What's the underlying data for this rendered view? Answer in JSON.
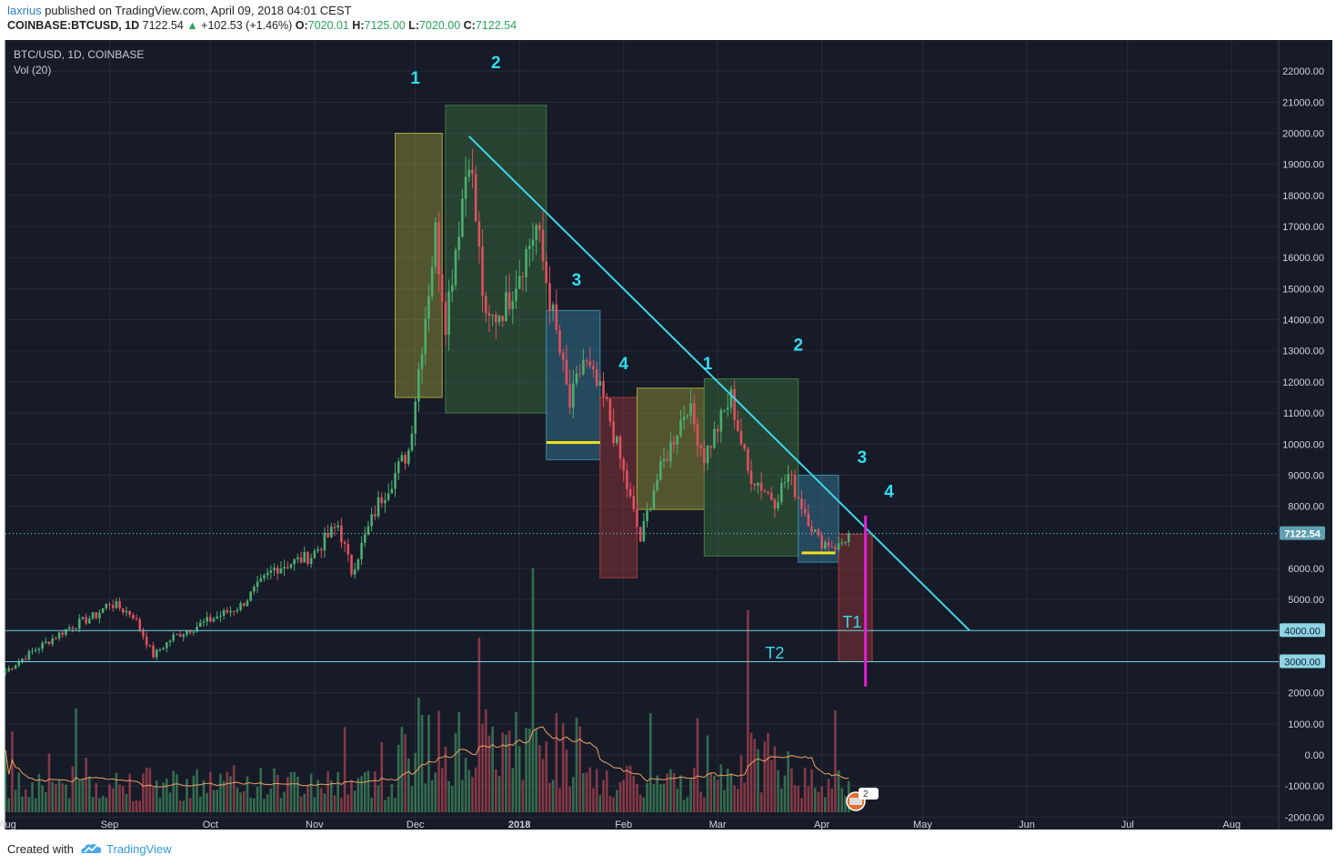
{
  "header": {
    "publisher": "laxrius",
    "published_text": "published on TradingView.com, April 09, 2018 04:01 CEST",
    "symbol": "COINBASE:BTCUSD, 1D",
    "last": "7122.54",
    "change": "+102.53 (+1.46%)",
    "open_label": "O:",
    "open": "7020.01",
    "high_label": "H:",
    "high": "7125.00",
    "low_label": "L:",
    "low": "7020.00",
    "close_label": "C:",
    "close": "7122.54"
  },
  "legend": {
    "series": "BTC/USD, 1D, COINBASE",
    "indicator": "Vol (20)"
  },
  "footer": {
    "created_with": "Created with",
    "brand": "TradingView"
  },
  "colors": {
    "background": "#171b28",
    "grid": "#262b3b",
    "up": "#4cae70",
    "down": "#e0505f",
    "annotation": "#33dcf0",
    "trendline": "#3fd8e8",
    "level_line": "#6fd5e6",
    "yellow_box": "#a8a83a",
    "green_box": "#3d7a3d",
    "teal_box": "#3a8aa8",
    "red_box": "#a83a3a",
    "support_line": "#f0e020",
    "target_bar": "#e020d0",
    "volume_ma": "#f0a060"
  },
  "chart_data": {
    "type": "candlestick",
    "title": "BTC/USD, 1D, COINBASE",
    "indicator": "Vol (20)",
    "x_ticks": [
      "Aug",
      "Sep",
      "Oct",
      "Nov",
      "Dec",
      "2018",
      "Feb",
      "Mar",
      "Apr",
      "May",
      "Jun",
      "Jul",
      "Aug"
    ],
    "y_ticks": [
      "22000.00",
      "21000.00",
      "20000.00",
      "19000.00",
      "18000.00",
      "17000.00",
      "16000.00",
      "15000.00",
      "14000.00",
      "13000.00",
      "12000.00",
      "11000.00",
      "10000.00",
      "9000.00",
      "8000.00",
      "6000.00",
      "5000.00",
      "2000.00",
      "1000.00",
      "0.00",
      "-1000.00",
      "-2000.00"
    ],
    "price_scale_labels": [
      "7122.54",
      "4000.00",
      "3000.00"
    ],
    "x_range": [
      "2017-08-01",
      "2018-08-15"
    ],
    "y_range": [
      -2400,
      23000
    ],
    "last_price": 7122.54,
    "close_series": {
      "start_date": "2017-08-01",
      "interval": "1D",
      "anchors": [
        [
          "2017-08-01",
          2700
        ],
        [
          "2017-08-10",
          3400
        ],
        [
          "2017-08-20",
          4100
        ],
        [
          "2017-08-28",
          4500
        ],
        [
          "2017-09-01",
          4900
        ],
        [
          "2017-09-08",
          4500
        ],
        [
          "2017-09-14",
          3200
        ],
        [
          "2017-09-20",
          3800
        ],
        [
          "2017-09-30",
          4300
        ],
        [
          "2017-10-10",
          4800
        ],
        [
          "2017-10-20",
          6000
        ],
        [
          "2017-10-31",
          6400
        ],
        [
          "2017-11-08",
          7400
        ],
        [
          "2017-11-12",
          5900
        ],
        [
          "2017-11-20",
          8100
        ],
        [
          "2017-11-29",
          9800
        ],
        [
          "2017-12-07",
          16800
        ],
        [
          "2017-12-10",
          14000
        ],
        [
          "2017-12-17",
          19500
        ],
        [
          "2017-12-22",
          13800
        ],
        [
          "2017-12-28",
          14500
        ],
        [
          "2018-01-06",
          17000
        ],
        [
          "2018-01-16",
          11200
        ],
        [
          "2018-01-20",
          12700
        ],
        [
          "2018-01-27",
          11200
        ],
        [
          "2018-02-06",
          6900
        ],
        [
          "2018-02-10",
          8600
        ],
        [
          "2018-02-20",
          11300
        ],
        [
          "2018-02-25",
          9600
        ],
        [
          "2018-03-05",
          11500
        ],
        [
          "2018-03-10",
          9100
        ],
        [
          "2018-03-18",
          8200
        ],
        [
          "2018-03-22",
          9000
        ],
        [
          "2018-03-31",
          6900
        ],
        [
          "2018-04-06",
          6700
        ],
        [
          "2018-04-09",
          7122.54
        ]
      ]
    },
    "trendline": {
      "from": [
        "2017-12-17",
        19900
      ],
      "to": [
        "2018-05-15",
        4000
      ]
    },
    "horizontal_levels": [
      {
        "label": "T1",
        "value": 4000
      },
      {
        "label": "T2",
        "value": 3000
      }
    ],
    "wave_annotations": [
      {
        "label": "1",
        "date": "2017-12-01",
        "price": 21600
      },
      {
        "label": "2",
        "date": "2017-12-25",
        "price": 22100
      },
      {
        "label": "3",
        "date": "2018-01-18",
        "price": 15100
      },
      {
        "label": "4",
        "date": "2018-02-01",
        "price": 12400
      },
      {
        "label": "1",
        "date": "2018-02-26",
        "price": 12400
      },
      {
        "label": "2",
        "date": "2018-03-25",
        "price": 13000
      },
      {
        "label": "3",
        "date": "2018-04-13",
        "price": 9400
      },
      {
        "label": "4",
        "date": "2018-04-21",
        "price": 8300
      }
    ],
    "boxes": [
      {
        "kind": "yellow",
        "from": "2017-11-25",
        "to": "2017-12-09",
        "high": 20000,
        "low": 11500
      },
      {
        "kind": "green",
        "from": "2017-12-10",
        "to": "2018-01-09",
        "high": 20900,
        "low": 11000
      },
      {
        "kind": "teal",
        "from": "2018-01-09",
        "to": "2018-01-25",
        "high": 14300,
        "low": 9500
      },
      {
        "kind": "red",
        "from": "2018-01-25",
        "to": "2018-02-05",
        "high": 11500,
        "low": 5700
      },
      {
        "kind": "yellow",
        "from": "2018-02-05",
        "to": "2018-02-25",
        "high": 11800,
        "low": 7900
      },
      {
        "kind": "green",
        "from": "2018-02-25",
        "to": "2018-03-25",
        "high": 12100,
        "low": 6400
      },
      {
        "kind": "teal",
        "from": "2018-03-25",
        "to": "2018-04-06",
        "high": 9000,
        "low": 6200
      },
      {
        "kind": "red",
        "from": "2018-04-06",
        "to": "2018-04-16",
        "high": 7100,
        "low": 3000
      }
    ],
    "support_lines": [
      {
        "from": "2018-01-09",
        "to": "2018-01-25",
        "value": 10050
      },
      {
        "from": "2018-03-26",
        "to": "2018-04-05",
        "value": 6500
      }
    ],
    "target_bar": {
      "date": "2018-04-14",
      "high": 7700,
      "low": 2200
    }
  }
}
